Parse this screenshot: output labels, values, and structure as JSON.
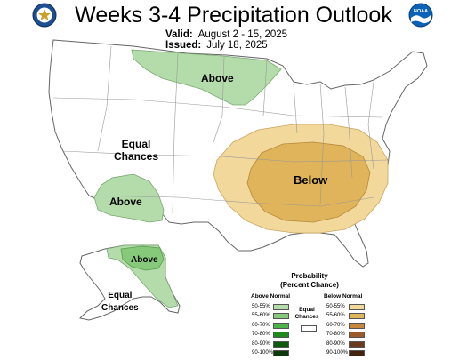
{
  "header": {
    "title": "Weeks 3-4 Precipitation Outlook",
    "valid_label": "Valid:",
    "valid_value": "August 2 - 15, 2025",
    "issued_label": "Issued:",
    "issued_value": "July 18, 2025"
  },
  "logos": {
    "left_icon": "department-of-commerce-seal",
    "right_icon": "noaa-logo",
    "right_text": "NOAA"
  },
  "map": {
    "regions": [
      {
        "id": "northern-plains",
        "label": "Above",
        "category": "above",
        "probability": "50-55%"
      },
      {
        "id": "southwest",
        "label": "Above",
        "category": "above",
        "probability": "50-55%"
      },
      {
        "id": "alaska-northeast",
        "label": "Above",
        "category": "above",
        "probability": "55-60%"
      },
      {
        "id": "alaska-outer",
        "label": "",
        "category": "above",
        "probability": "50-55%"
      },
      {
        "id": "central-outer",
        "label": "",
        "category": "below",
        "probability": "50-55%"
      },
      {
        "id": "central-inner",
        "label": "Below",
        "category": "below",
        "probability": "55-60%"
      }
    ],
    "equal_chances_conus": "Equal\nChances",
    "equal_chances_alaska": "Equal\nChances"
  },
  "legend": {
    "title": "Probability\n(Percent Chance)",
    "above_heading": "Above Normal",
    "below_heading": "Below Normal",
    "equal_label": "Equal\nChances",
    "above": [
      {
        "label": "50-55%",
        "color": "#b4dcab"
      },
      {
        "label": "55-60%",
        "color": "#86c97a"
      },
      {
        "label": "60-70%",
        "color": "#4ab44a"
      },
      {
        "label": "70-80%",
        "color": "#1e8a1e"
      },
      {
        "label": "80-90%",
        "color": "#0d5a0d"
      },
      {
        "label": "90-100%",
        "color": "#0a3a0a"
      }
    ],
    "below": [
      {
        "label": "50-55%",
        "color": "#f2d89b"
      },
      {
        "label": "55-60%",
        "color": "#e0b45a"
      },
      {
        "label": "60-70%",
        "color": "#c8883c"
      },
      {
        "label": "70-80%",
        "color": "#9a5a2a"
      },
      {
        "label": "80-90%",
        "color": "#6b3a1e"
      },
      {
        "label": "90-100%",
        "color": "#42230f"
      }
    ]
  }
}
